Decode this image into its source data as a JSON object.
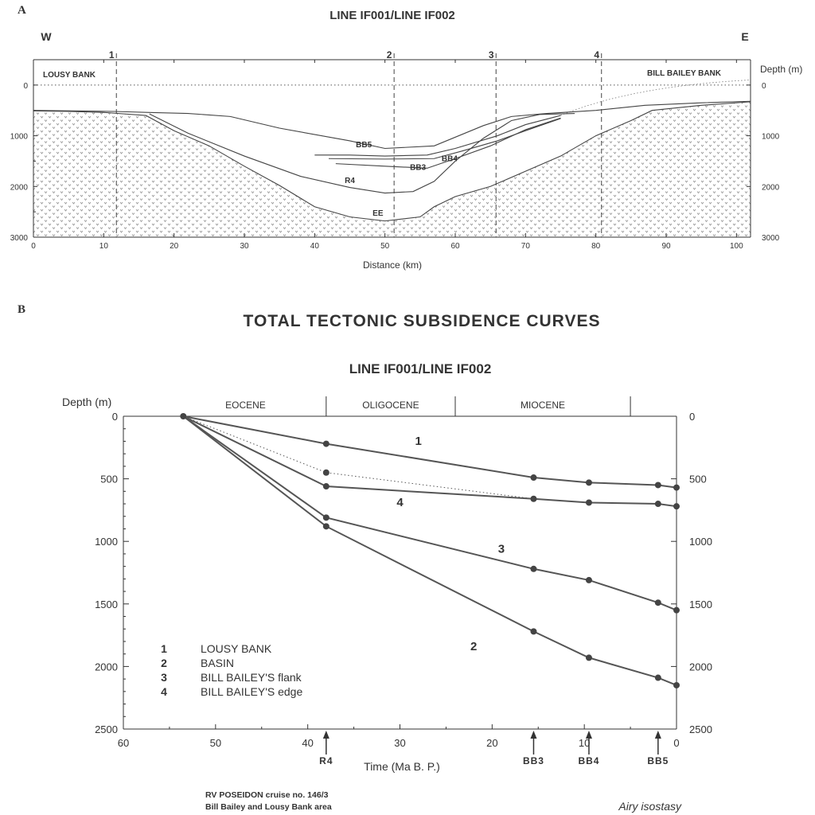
{
  "panel_a": {
    "letter": "A",
    "title": "LINE IF001/LINE IF002",
    "west": "W",
    "east": "E",
    "left_place": "LOUSY BANK",
    "right_place": "BILL BAILEY BANK",
    "right_axis_label": "Depth (m)",
    "xlabel": "Distance (km)"
  },
  "panel_b": {
    "letter": "B",
    "title": "TOTAL TECTONIC SUBSIDENCE CURVES",
    "subtitle": "LINE IF001/LINE IF002",
    "ylabel": "Depth (m)",
    "xlabel": "Time (Ma B. P.)",
    "epochs": [
      "EOCENE",
      "OLIGOCENE",
      "MIOCENE"
    ],
    "footer_line1": "RV POSEIDON cruise no. 146/3",
    "footer_line2": "Bill Bailey and Lousy Bank area",
    "footer_right": "Airy isostasy"
  },
  "chart_data": [
    {
      "type": "line",
      "title": "LINE IF001/LINE IF002",
      "xlabel": "Distance (km)",
      "ylabel": "Depth (m)",
      "xlim": [
        0,
        102
      ],
      "ylim": [
        3000,
        -500
      ],
      "x_ticks": [
        0,
        10,
        20,
        30,
        40,
        50,
        60,
        70,
        80,
        90,
        100
      ],
      "y_ticks": [
        0,
        1000,
        2000,
        3000
      ],
      "sites": [
        {
          "label": "1",
          "x": 11.8
        },
        {
          "label": "2",
          "x": 51.3
        },
        {
          "label": "3",
          "x": 65.8
        },
        {
          "label": "4",
          "x": 80.8
        }
      ],
      "series": [
        {
          "name": "seabed",
          "points": [
            [
              0,
              500
            ],
            [
              11.5,
              520
            ],
            [
              16.5,
              540
            ],
            [
              22,
              560
            ],
            [
              28,
              620
            ],
            [
              35,
              850
            ],
            [
              45,
              1100
            ],
            [
              50,
              1250
            ],
            [
              57,
              1200
            ],
            [
              64,
              800
            ],
            [
              68,
              620
            ],
            [
              73,
              560
            ],
            [
              80,
              500
            ],
            [
              87,
              400
            ],
            [
              95,
              350
            ],
            [
              102,
              320
            ]
          ]
        },
        {
          "name": "BB5",
          "points": [
            [
              40,
              1380
            ],
            [
              45,
              1380
            ],
            [
              50,
              1400
            ],
            [
              56,
              1380
            ],
            [
              60,
              1250
            ],
            [
              66,
              1000
            ],
            [
              70,
              780
            ],
            [
              75,
              600
            ]
          ]
        },
        {
          "name": "BB4",
          "points": [
            [
              42,
              1450
            ],
            [
              50,
              1460
            ],
            [
              57,
              1450
            ],
            [
              61,
              1300
            ],
            [
              66,
              1100
            ],
            [
              70,
              900
            ],
            [
              75,
              660
            ]
          ]
        },
        {
          "name": "BB3",
          "points": [
            [
              43,
              1550
            ],
            [
              50,
              1600
            ],
            [
              56,
              1640
            ],
            [
              60,
              1450
            ],
            [
              65,
              1200
            ],
            [
              70,
              880
            ],
            [
              75,
              650
            ]
          ]
        },
        {
          "name": "R4",
          "points": [
            [
              16.5,
              570
            ],
            [
              22,
              950
            ],
            [
              30,
              1400
            ],
            [
              38,
              1800
            ],
            [
              45,
              2020
            ],
            [
              50,
              2130
            ],
            [
              54,
              2100
            ],
            [
              57,
              1900
            ],
            [
              60,
              1500
            ],
            [
              64,
              1050
            ],
            [
              68,
              700
            ],
            [
              72,
              580
            ],
            [
              77,
              560
            ]
          ]
        },
        {
          "name": "EE",
          "points": [
            [
              0,
              510
            ],
            [
              5,
              520
            ],
            [
              10,
              540
            ],
            [
              16,
              600
            ],
            [
              20,
              900
            ],
            [
              25,
              1200
            ],
            [
              30,
              1600
            ],
            [
              35,
              1980
            ],
            [
              40,
              2400
            ],
            [
              45,
              2600
            ],
            [
              50,
              2680
            ],
            [
              55,
              2600
            ],
            [
              57,
              2400
            ],
            [
              60,
              2200
            ],
            [
              65,
              2000
            ],
            [
              70,
              1700
            ],
            [
              75,
              1400
            ],
            [
              80,
              1000
            ],
            [
              85,
              700
            ],
            [
              88,
              500
            ],
            [
              95,
              400
            ],
            [
              102,
              330
            ]
          ]
        }
      ],
      "labels": [
        "BB5",
        "BB4",
        "BB3",
        "R4",
        "EE"
      ]
    },
    {
      "type": "line",
      "title": "TOTAL TECTONIC SUBSIDENCE CURVES",
      "subtitle": "LINE IF001/LINE IF002",
      "xlabel": "Time (Ma B. P.)",
      "ylabel": "Depth (m)",
      "xlim": [
        60,
        0
      ],
      "ylim": [
        0,
        2500
      ],
      "x_ticks": [
        60,
        50,
        40,
        30,
        20,
        10,
        0
      ],
      "y_ticks": [
        0,
        500,
        1000,
        1500,
        2000,
        2500
      ],
      "epoch_boundaries": [
        38,
        24,
        5
      ],
      "markers": [
        {
          "label": "R4",
          "x": 38
        },
        {
          "label": "BB3",
          "x": 15.5
        },
        {
          "label": "BB4",
          "x": 9.5
        },
        {
          "label": "BB5",
          "x": 2
        }
      ],
      "series": [
        {
          "name": "1",
          "legend": "LOUSY BANK",
          "x": [
            53.5,
            38,
            15.5,
            9.5,
            2,
            0
          ],
          "y": [
            0,
            220,
            490,
            530,
            550,
            570
          ]
        },
        {
          "name": "2",
          "legend": "BASIN",
          "x": [
            53.5,
            38,
            15.5,
            9.5,
            2,
            0
          ],
          "y": [
            0,
            880,
            1720,
            1930,
            2090,
            2150
          ]
        },
        {
          "name": "3",
          "legend": "BILL BAILEY'S flank",
          "x": [
            53.5,
            38,
            15.5,
            9.5,
            2,
            0
          ],
          "y": [
            0,
            810,
            1220,
            1310,
            1490,
            1550
          ]
        },
        {
          "name": "4",
          "legend": "BILL BAILEY'S edge",
          "x": [
            53.5,
            38,
            15.5,
            9.5,
            2,
            0
          ],
          "y": [
            0,
            560,
            660,
            690,
            700,
            720
          ]
        },
        {
          "name": "",
          "style": "dotted",
          "x": [
            53.5,
            38,
            15.5
          ],
          "y": [
            0,
            450,
            660
          ]
        }
      ]
    }
  ]
}
